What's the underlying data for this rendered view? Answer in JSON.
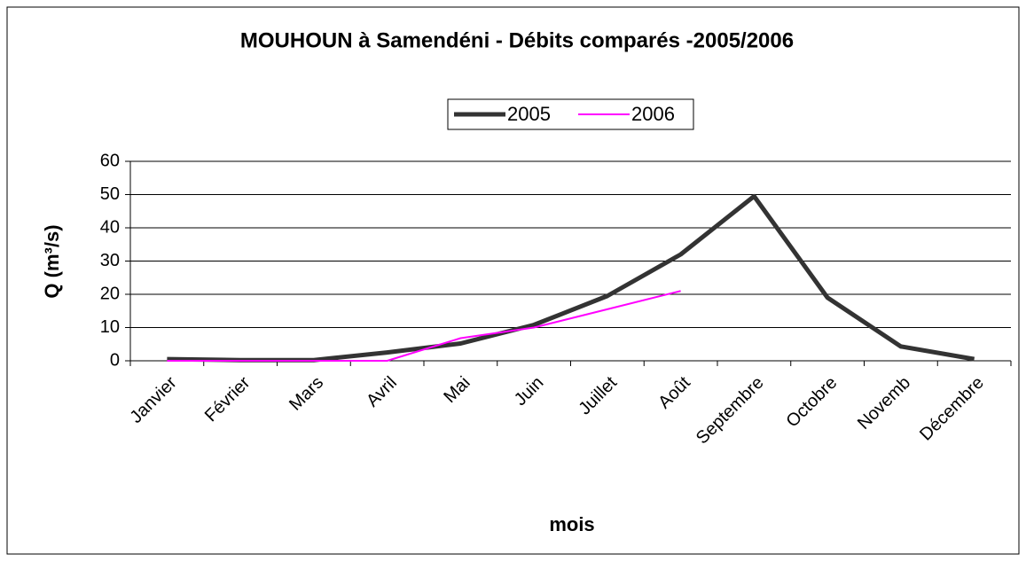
{
  "chart_data": {
    "type": "line",
    "title": "MOUHOUN à Samendéni - Débits comparés -2005/2006",
    "xlabel": "mois",
    "ylabel": "Q (m³/s)",
    "categories": [
      "Janvier",
      "Février",
      "Mars",
      "Avril",
      "Mai",
      "Juin",
      "Juillet",
      "Août",
      "Septembre",
      "Octobre",
      "Novemb",
      "Décembre"
    ],
    "series": [
      {
        "name": "2005",
        "color": "#333333",
        "values": [
          0.5,
          0.2,
          0.2,
          2.5,
          5.2,
          10.8,
          19.5,
          32,
          49.5,
          19,
          4.3,
          0.5
        ]
      },
      {
        "name": "2006",
        "color": "#ff00ff",
        "values": [
          0,
          0,
          0,
          0,
          6.8,
          10,
          15.5,
          21,
          null,
          null,
          null,
          null
        ]
      }
    ],
    "ylim": [
      0,
      60
    ],
    "yticks": [
      0,
      10,
      20,
      30,
      40,
      50,
      60
    ],
    "grid": true,
    "legend": "top"
  }
}
